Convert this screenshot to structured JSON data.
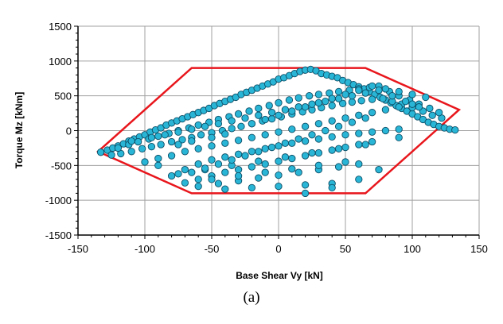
{
  "caption": "(a)",
  "colors": {
    "point_fill": "#29b6d6",
    "point_stroke": "#0c4d66",
    "envelope": "#e8161c",
    "grid": "#a0a0a0",
    "axis": "#000000"
  },
  "chart_data": {
    "type": "scatter",
    "xlabel": "Base Shear  Vy [kN]",
    "ylabel": "Torque  Mz [kNm]",
    "xlim": [
      -150,
      150
    ],
    "ylim": [
      -1500,
      1500
    ],
    "x_ticks": [
      -150,
      -100,
      -50,
      0,
      50,
      100,
      150
    ],
    "y_ticks": [
      -1500,
      -1000,
      -500,
      0,
      500,
      1000,
      1500
    ],
    "grid": true,
    "envelope": {
      "x": [
        -135,
        -65,
        0,
        65,
        135,
        65,
        0,
        -65,
        -135
      ],
      "y": [
        -300,
        -900,
        -900,
        -900,
        300,
        900,
        900,
        900,
        -300
      ]
    },
    "points": {
      "x": [
        -133,
        -128,
        -124,
        -120,
        -116,
        -112,
        -108,
        -104,
        -100,
        -96,
        -92,
        -88,
        -84,
        -80,
        -76,
        -72,
        -68,
        -64,
        -60,
        -56,
        -52,
        -48,
        -44,
        -40,
        -36,
        -32,
        -28,
        -24,
        -20,
        -16,
        -12,
        -8,
        -4,
        0,
        4,
        8,
        12,
        16,
        20,
        24,
        28,
        32,
        36,
        40,
        44,
        48,
        52,
        56,
        60,
        64,
        68,
        72,
        76,
        80,
        84,
        88,
        92,
        96,
        100,
        104,
        108,
        112,
        116,
        120,
        124,
        128,
        132,
        -125,
        -118,
        -110,
        -102,
        -95,
        -88,
        -80,
        -72,
        -65,
        -58,
        -50,
        -42,
        -35,
        -28,
        -20,
        -12,
        -5,
        2,
        10,
        18,
        25,
        32,
        40,
        48,
        55,
        62,
        70,
        78,
        85,
        92,
        100,
        108,
        115,
        122,
        -120,
        -112,
        -105,
        -97,
        -90,
        -82,
        -75,
        -67,
        -60,
        -52,
        -45,
        -37,
        -30,
        -22,
        -15,
        -7,
        0,
        8,
        15,
        23,
        30,
        38,
        45,
        53,
        60,
        68,
        75,
        83,
        90,
        98,
        105,
        113,
        120,
        -80,
        -70,
        -60,
        -50,
        -40,
        -30,
        -20,
        -10,
        0,
        10,
        20,
        30,
        40,
        50,
        60,
        70,
        80,
        90,
        -70,
        -60,
        -50,
        -40,
        -30,
        -20,
        -10,
        0,
        10,
        20,
        30,
        40,
        50,
        60,
        70,
        -60,
        -45,
        -30,
        -15,
        0,
        15,
        30,
        45,
        60,
        -40,
        -20,
        0,
        20,
        40,
        -75,
        -55,
        -35,
        -15,
        5,
        25,
        45,
        65,
        -100,
        -90,
        -80,
        -70,
        -60,
        -50,
        -40,
        -30,
        -20,
        -10,
        0,
        10,
        20,
        30,
        40,
        50,
        60,
        70,
        80,
        90,
        100,
        -110,
        -95,
        -85,
        -75,
        -65,
        -55,
        -45,
        -35,
        -25,
        -15,
        -5,
        5,
        15,
        25,
        35,
        45,
        55,
        65,
        75,
        85,
        95,
        105,
        -90,
        -65,
        -55,
        -45,
        -35,
        -25,
        -15,
        -5,
        5,
        15,
        25,
        35,
        45,
        55,
        65,
        90,
        -50,
        -30,
        -10,
        10,
        30,
        50,
        20,
        40,
        60,
        75,
        -75,
        -65,
        -50,
        -40,
        -20,
        -10,
        0,
        10,
        20,
        30,
        40,
        50,
        60,
        70,
        80,
        90,
        100,
        110
      ],
      "y": [
        -310,
        -280,
        -250,
        -220,
        -190,
        -150,
        -120,
        -90,
        -60,
        -20,
        10,
        40,
        80,
        110,
        140,
        170,
        200,
        230,
        260,
        290,
        320,
        360,
        390,
        420,
        450,
        480,
        520,
        550,
        580,
        610,
        640,
        670,
        700,
        740,
        760,
        790,
        820,
        850,
        870,
        880,
        860,
        820,
        800,
        780,
        760,
        720,
        690,
        660,
        630,
        600,
        560,
        520,
        480,
        440,
        400,
        360,
        320,
        280,
        240,
        200,
        160,
        120,
        90,
        60,
        40,
        20,
        10,
        -350,
        -330,
        -300,
        -260,
        -230,
        -200,
        -160,
        -130,
        -100,
        -60,
        -30,
        0,
        30,
        60,
        100,
        140,
        170,
        200,
        240,
        270,
        300,
        330,
        360,
        390,
        410,
        430,
        450,
        460,
        420,
        380,
        330,
        280,
        220,
        180,
        -250,
        -200,
        -160,
        -120,
        -80,
        -40,
        0,
        40,
        80,
        120,
        160,
        200,
        240,
        280,
        320,
        360,
        400,
        440,
        470,
        500,
        520,
        540,
        560,
        580,
        600,
        620,
        640,
        560,
        500,
        440,
        380,
        320,
        260,
        -650,
        -560,
        -480,
        -420,
        -380,
        -340,
        -300,
        -260,
        -220,
        -180,
        -150,
        -120,
        -90,
        -60,
        -40,
        -20,
        0,
        20,
        -750,
        -700,
        -650,
        -600,
        -560,
        -520,
        -480,
        -440,
        -400,
        -360,
        -320,
        -280,
        -240,
        -200,
        -160,
        -800,
        -760,
        -720,
        -680,
        -640,
        -600,
        -560,
        -520,
        -480,
        -840,
        -820,
        -800,
        -780,
        -760,
        -620,
        -560,
        -500,
        -440,
        -380,
        -320,
        -260,
        -200,
        -450,
        -400,
        -360,
        -300,
        -260,
        -220,
        -180,
        -140,
        -100,
        -60,
        -20,
        20,
        60,
        100,
        140,
        180,
        220,
        260,
        300,
        340,
        380,
        -150,
        -100,
        -60,
        -20,
        20,
        60,
        100,
        140,
        180,
        220,
        260,
        300,
        340,
        380,
        420,
        460,
        500,
        540,
        580,
        500,
        420,
        340,
        -500,
        -600,
        -540,
        -480,
        -420,
        -360,
        -300,
        -240,
        -180,
        -120,
        -60,
        0,
        60,
        120,
        180,
        -100,
        -700,
        -650,
        -600,
        -550,
        -500,
        -450,
        -900,
        -820,
        -700,
        -560,
        -200,
        -150,
        -100,
        -50,
        100,
        160,
        220,
        280,
        340,
        400,
        460,
        520,
        580,
        640,
        600,
        560,
        520,
        480
      ]
    }
  }
}
